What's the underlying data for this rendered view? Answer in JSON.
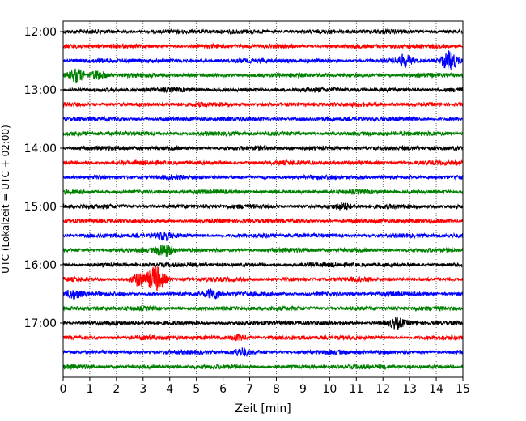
{
  "chart_data": {
    "type": "line",
    "title": "",
    "xlabel": "Zeit  [min]",
    "ylabel": "UTC (Lokalzeit = UTC + 02:00)",
    "x_ticks": [
      "0",
      "1",
      "2",
      "3",
      "4",
      "5",
      "6",
      "7",
      "8",
      "9",
      "10",
      "11",
      "12",
      "13",
      "14",
      "15"
    ],
    "xlim": [
      0,
      15
    ],
    "y_ticks": [
      "12:00",
      "13:00",
      "14:00",
      "15:00",
      "16:00",
      "17:00"
    ],
    "grid": "vertical-dotted",
    "series_colors": [
      "#000000",
      "#ff0000",
      "#0000ff",
      "#008000"
    ],
    "trace_count": 24,
    "trace_interval_minutes": 15,
    "events": [
      {
        "trace": 2,
        "x": 14.5,
        "amplitude": 1.8
      },
      {
        "trace": 2,
        "x": 12.8,
        "amplitude": 1.0
      },
      {
        "trace": 3,
        "x": 0.5,
        "amplitude": 1.2
      },
      {
        "trace": 3,
        "x": 1.3,
        "amplitude": 0.8
      },
      {
        "trace": 12,
        "x": 10.5,
        "amplitude": 0.6
      },
      {
        "trace": 14,
        "x": 3.8,
        "amplitude": 0.8
      },
      {
        "trace": 15,
        "x": 3.8,
        "amplitude": 1.2
      },
      {
        "trace": 17,
        "x": 3.5,
        "amplitude": 2.6
      },
      {
        "trace": 17,
        "x": 2.9,
        "amplitude": 1.4
      },
      {
        "trace": 18,
        "x": 5.6,
        "amplitude": 0.9
      },
      {
        "trace": 18,
        "x": 0.4,
        "amplitude": 0.8
      },
      {
        "trace": 20,
        "x": 12.5,
        "amplitude": 0.9
      },
      {
        "trace": 21,
        "x": 6.6,
        "amplitude": 0.5
      },
      {
        "trace": 22,
        "x": 6.7,
        "amplitude": 0.7
      }
    ]
  }
}
